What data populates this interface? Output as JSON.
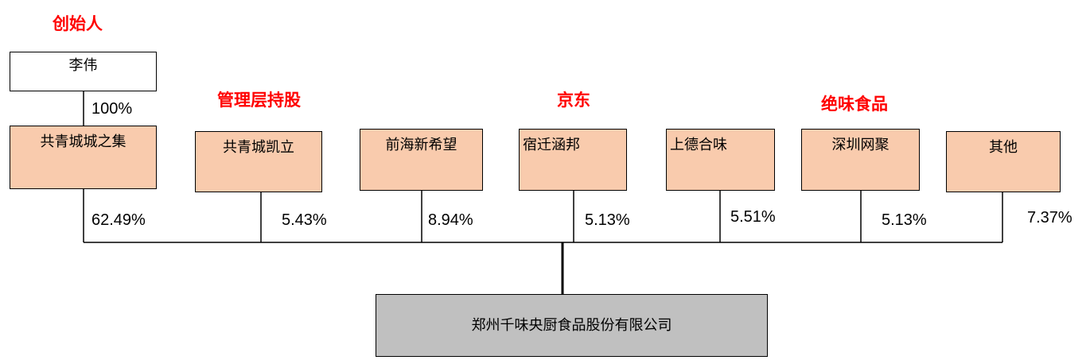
{
  "categories": {
    "founder": "创始人",
    "management": "管理层持股",
    "jd": "京东",
    "juewei": "绝味食品"
  },
  "founder": {
    "name": "李伟",
    "percent": "100%"
  },
  "shareholders": [
    {
      "name": "共青城城之集",
      "percent": "62.49%"
    },
    {
      "name": "共青城凯立",
      "percent": "5.43%"
    },
    {
      "name": "前海新希望",
      "percent": "8.94%"
    },
    {
      "name": "宿迁涵邦",
      "percent": "5.13%"
    },
    {
      "name": "上德合味",
      "percent": "5.51%"
    },
    {
      "name": "深圳网聚",
      "percent": "5.13%"
    },
    {
      "name": "其他",
      "percent": "7.37%"
    }
  ],
  "company": {
    "name": "郑州千味央厨食品股份有限公司"
  },
  "colors": {
    "category_text": "#ff0000",
    "shareholder_fill": "#f9cbad",
    "company_fill": "#c0c0c0"
  }
}
